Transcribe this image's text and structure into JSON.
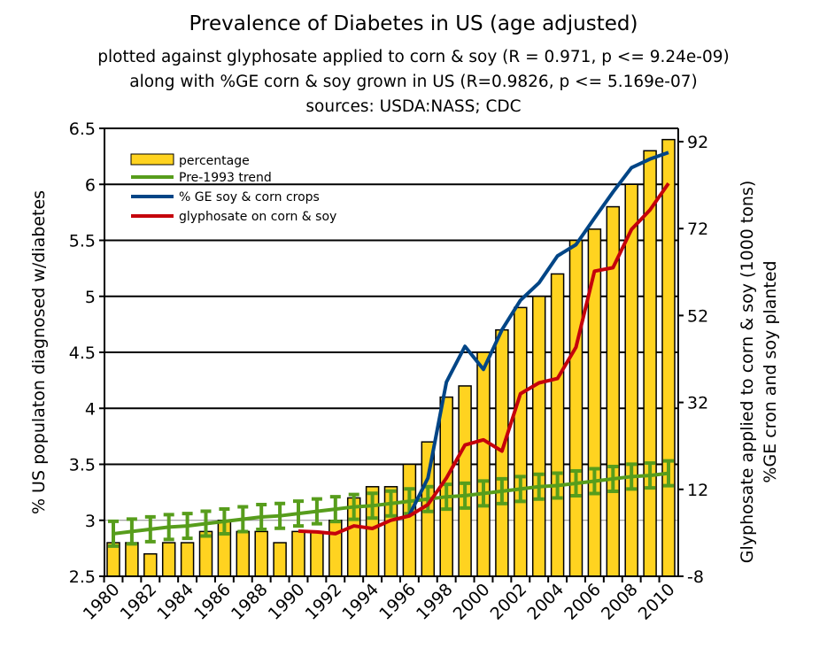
{
  "chart_data": {
    "type": "bar",
    "title": "Prevalence of Diabetes in US (age adjusted)",
    "subtitles": [
      "plotted against glyphosate applied to corn & soy (R = 0.971, p <= 9.24e-09)",
      "along with %GE corn & soy grown in US (R=0.9826, p <= 5.169e-07)",
      "sources: USDA:NASS; CDC"
    ],
    "ylabel": "% US populaton diagnosed w/diabetes",
    "y2label": [
      "Glyphosate applied to corn & soy (1000 tons)",
      "%GE cron and soy planted"
    ],
    "ylim": [
      2.5,
      6.5
    ],
    "yticks": [
      "2.5",
      "3",
      "3.5",
      "4",
      "4.5",
      "5",
      "5.5",
      "6",
      "6.5"
    ],
    "y2lim": [
      -8,
      92
    ],
    "y2ticks": [
      "-8",
      "12",
      "32",
      "52",
      "72",
      "92"
    ],
    "x": [
      1980,
      1981,
      1982,
      1983,
      1984,
      1985,
      1986,
      1987,
      1988,
      1989,
      1990,
      1991,
      1992,
      1993,
      1994,
      1995,
      1996,
      1997,
      1998,
      1999,
      2000,
      2001,
      2002,
      2003,
      2004,
      2005,
      2006,
      2007,
      2008,
      2009,
      2010
    ],
    "xticklabels": [
      "1980",
      "1982",
      "1984",
      "1986",
      "1988",
      "1990",
      "1992",
      "1994",
      "1996",
      "1998",
      "2000",
      "2002",
      "2004",
      "2006",
      "2008",
      "2010"
    ],
    "legend_position": "top-left",
    "series": [
      {
        "name": "percentage",
        "type": "bar",
        "axis": "left",
        "color": "#ffd320",
        "values": [
          2.8,
          2.8,
          2.7,
          2.8,
          2.8,
          2.9,
          3.0,
          2.9,
          2.9,
          2.8,
          2.9,
          2.9,
          3.0,
          3.2,
          3.3,
          3.3,
          3.5,
          3.7,
          4.1,
          4.2,
          4.5,
          4.7,
          4.9,
          5.0,
          5.2,
          5.5,
          5.6,
          5.8,
          6.0,
          6.3,
          6.4
        ]
      },
      {
        "name": "Pre-1993 trend",
        "type": "line",
        "axis": "left",
        "color": "#579d1c",
        "error_bars": true,
        "values": [
          2.88,
          2.9,
          2.92,
          2.94,
          2.95,
          2.97,
          2.99,
          3.01,
          3.03,
          3.04,
          3.06,
          3.08,
          3.1,
          3.12,
          3.13,
          3.15,
          3.17,
          3.19,
          3.21,
          3.22,
          3.24,
          3.26,
          3.28,
          3.3,
          3.31,
          3.33,
          3.35,
          3.37,
          3.39,
          3.4,
          3.42
        ]
      },
      {
        "name": "% GE soy & corn crops",
        "type": "line",
        "axis": "right",
        "color": "#004586",
        "values": [
          null,
          null,
          null,
          null,
          null,
          null,
          null,
          null,
          null,
          null,
          null,
          null,
          null,
          null,
          null,
          null,
          6.1,
          14.6,
          36.7,
          44.9,
          39.6,
          48.7,
          55.5,
          59.5,
          65.7,
          68.3,
          74.4,
          80.4,
          86,
          88,
          89.5
        ]
      },
      {
        "name": "glyphosate on corn & soy",
        "type": "line",
        "axis": "right",
        "color": "#c5000b",
        "values": [
          null,
          null,
          null,
          null,
          null,
          null,
          null,
          null,
          null,
          null,
          2.4,
          2.2,
          1.8,
          3.6,
          3.0,
          4.9,
          5.9,
          8.5,
          14.6,
          22.2,
          23.4,
          20.8,
          34,
          36.5,
          37.5,
          44.7,
          62.2,
          63,
          71.8,
          76.3,
          82.4
        ]
      }
    ]
  }
}
